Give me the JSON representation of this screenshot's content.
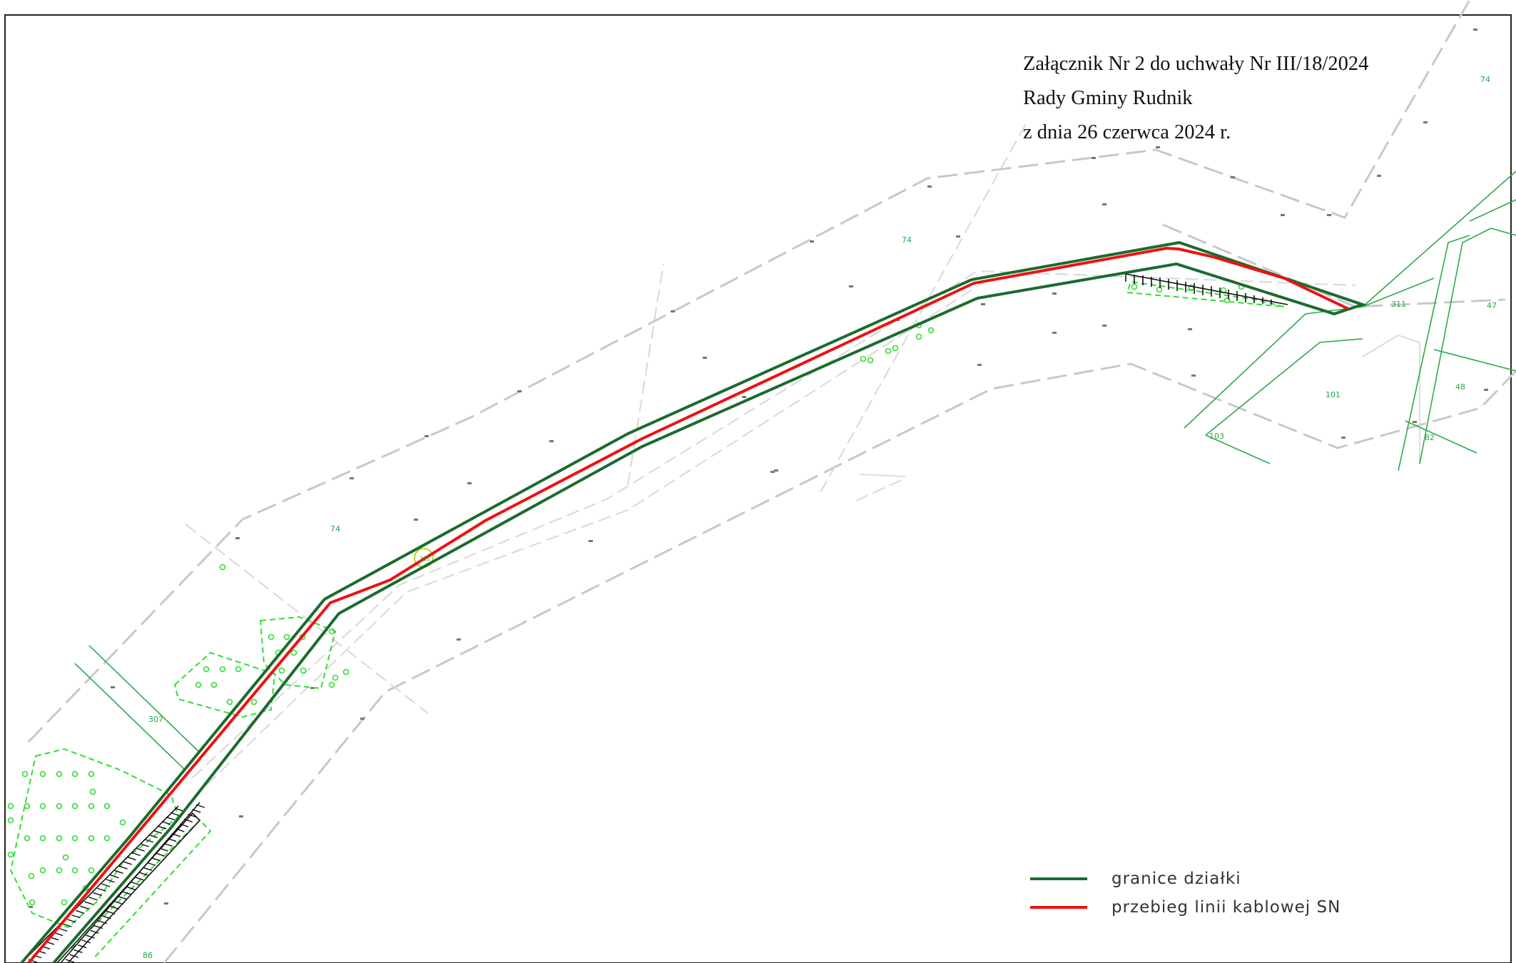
{
  "header": {
    "line1": "Załącznik Nr 2 do uchwały Nr III/18/2024",
    "line2": "Rady Gminy Rudnik",
    "line3": "z dnia 26 czerwca 2024 r."
  },
  "legend": [
    {
      "label": "granice działki",
      "color": "#1b6b2e"
    },
    {
      "label": "przebieg linii kablowej SN",
      "color": "#ee1111"
    }
  ],
  "map_labels": {
    "parcels": [
      "74",
      "74",
      "74",
      "307",
      "86",
      "311",
      "101",
      "103",
      "47",
      "48",
      "82"
    ],
    "small": [
      "311"
    ]
  },
  "colors": {
    "boundary": "#1b6b2e",
    "cable": "#ee1111",
    "dashed_gray": "#c8c8c8",
    "vegetation": "#33dd33",
    "frame": "#222222"
  }
}
